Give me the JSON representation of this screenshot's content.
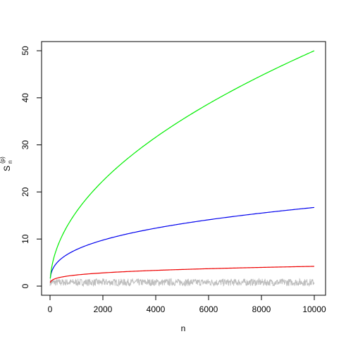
{
  "chart_data": {
    "type": "line",
    "xlabel": "n",
    "ylabel": "S",
    "ylabel_superscript": "(p)",
    "ylabel_subscript": "n",
    "xlim": [
      0,
      10000
    ],
    "ylim": [
      0,
      50
    ],
    "x_ticks": [
      "0",
      "2000",
      "4000",
      "6000",
      "8000",
      "10000"
    ],
    "y_ticks": [
      "0",
      "10",
      "20",
      "30",
      "40",
      "50"
    ],
    "grid": false,
    "series": [
      {
        "color": "#00ee00",
        "model": "0.5*sqrt(n)",
        "x_end": 10000,
        "y_end": 50
      },
      {
        "color": "#0000ee",
        "model": "n^(1/3)*0.777",
        "x_end": 10000,
        "y_end": 16.7
      },
      {
        "color": "#ee0000",
        "model": "n^(1/4)*0.42",
        "x_end": 10000,
        "y_end": 4.2
      },
      {
        "color": "#bebebe",
        "model": "noise around 0.7 (range approx 0-1.6)",
        "x_end": 10000,
        "y_end": 0.8
      }
    ]
  }
}
